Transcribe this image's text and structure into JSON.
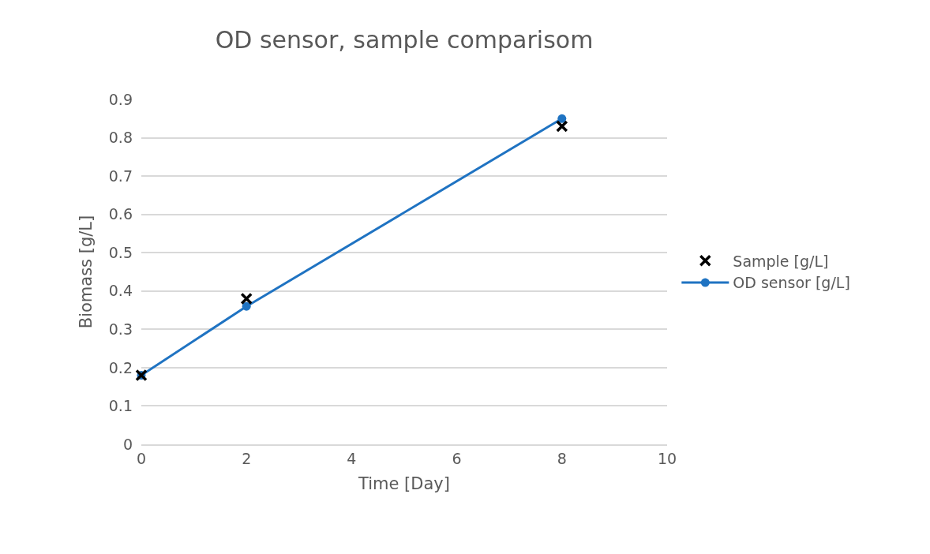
{
  "chart_data": {
    "type": "scatter",
    "title": "OD sensor, sample comparisom",
    "xlabel": "Time [Day]",
    "ylabel": "Biomass [g/L]",
    "xlim": [
      0,
      10
    ],
    "xticks": [
      0,
      2,
      4,
      6,
      8,
      10
    ],
    "ylim": [
      0,
      0.9
    ],
    "yticks": [
      0,
      0.1,
      0.2,
      0.3,
      0.4,
      0.5,
      0.6,
      0.7,
      0.8,
      0.9
    ],
    "grid": "y",
    "legend": "right",
    "series": [
      {
        "name": "Sample [g/L]",
        "marker": "cross",
        "color": "#000000",
        "x": [
          0,
          2,
          8
        ],
        "values": [
          0.18,
          0.38,
          0.83
        ]
      },
      {
        "name": "OD sensor [g/L]",
        "type": "line",
        "marker": "circle",
        "line_style": "solid",
        "color": "#1f73c2",
        "x": [
          0,
          2,
          8
        ],
        "values": [
          0.18,
          0.36,
          0.85
        ]
      }
    ]
  }
}
